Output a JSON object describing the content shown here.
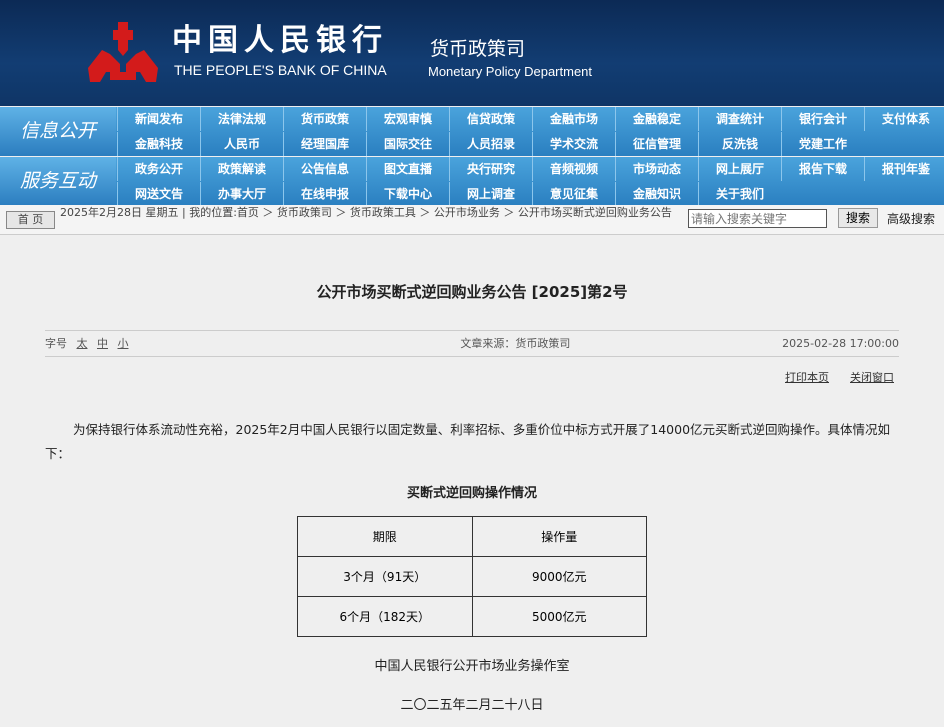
{
  "header": {
    "logo_cn": "中国人民银行",
    "logo_en": "THE PEOPLE'S BANK OF CHINA",
    "dept_cn": "货币政策司",
    "dept_en": "Monetary Policy Department"
  },
  "nav": {
    "info_label": "信息公开",
    "info_row1": [
      "新闻发布",
      "法律法规",
      "货币政策",
      "宏观审慎",
      "信贷政策",
      "金融市场",
      "金融稳定",
      "调查统计",
      "银行会计",
      "支付体系"
    ],
    "info_row2": [
      "金融科技",
      "人民币",
      "经理国库",
      "国际交往",
      "人员招录",
      "学术交流",
      "征信管理",
      "反洗钱",
      "党建工作"
    ],
    "service_label": "服务互动",
    "service_row1": [
      "政务公开",
      "政策解读",
      "公告信息",
      "图文直播",
      "央行研究",
      "音频视频",
      "市场动态",
      "网上展厅",
      "报告下载",
      "报刊年鉴"
    ],
    "service_row2": [
      "网送文告",
      "办事大厅",
      "在线申报",
      "下载中心",
      "网上调查",
      "意见征集",
      "金融知识",
      "关于我们"
    ]
  },
  "crumb": {
    "home": "首 页",
    "date": "2025年2月28日 星期五",
    "location": "我的位置:首页 ＞ 货币政策司 ＞ 货币政策工具 ＞ 公开市场业务 ＞ 公开市场买断式逆回购业务公告",
    "search_placeholder": "请输入搜索关键字",
    "search_btn": "搜索",
    "advanced": "高级搜索"
  },
  "article": {
    "title": "公开市场买断式逆回购业务公告 [2025]第2号",
    "font_size_label": "字号",
    "font_sizes": [
      "太",
      "中",
      "小"
    ],
    "source": "文章来源：货币政策司",
    "datetime": "2025-02-28 17:00:00",
    "print": "打印本页",
    "close": "关闭窗口",
    "paragraph": "为保持银行体系流动性充裕，2025年2月中国人民银行以固定数量、利率招标、多重价位中标方式开展了14000亿元买断式逆回购操作。具体情况如下：",
    "table_title": "买断式逆回购操作情况",
    "table_headers": [
      "期限",
      "操作量"
    ],
    "table_rows": [
      [
        "3个月（91天）",
        "9000亿元"
      ],
      [
        "6个月（182天）",
        "5000亿元"
      ]
    ],
    "signature": "中国人民银行公开市场业务操作室",
    "date": "二〇二五年二月二十八日"
  }
}
